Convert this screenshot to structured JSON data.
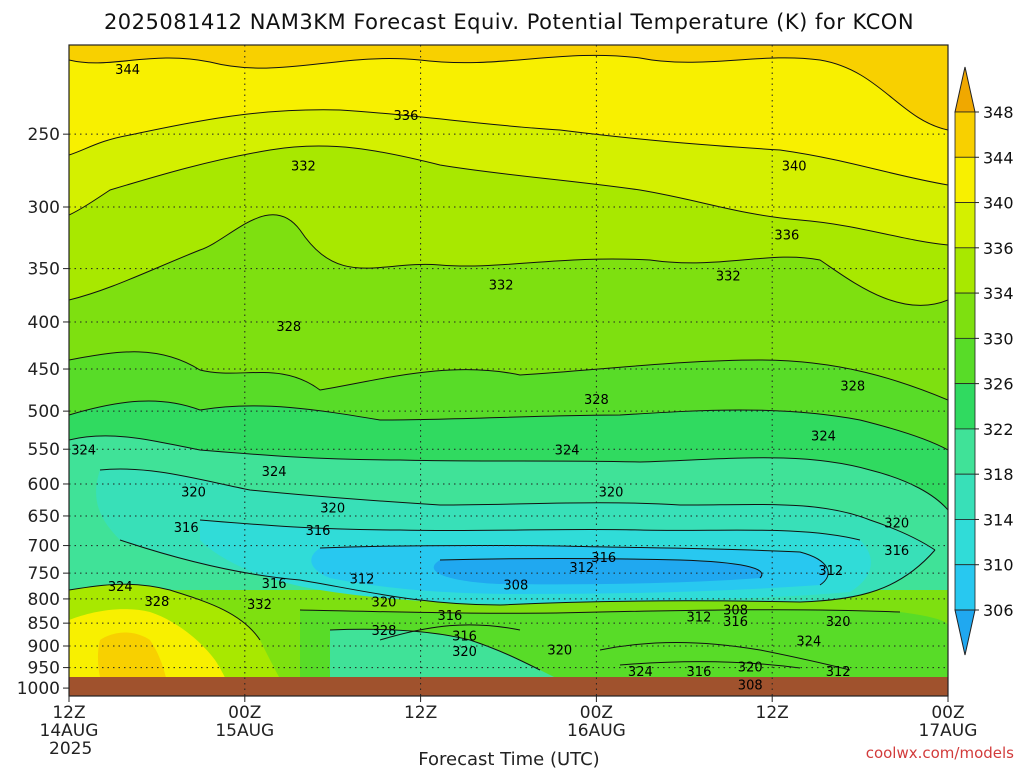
{
  "title": "2025081412 NAM3KM Forecast Equiv. Potential Temperature (K) for KCON",
  "x_axis_label": "Forecast Time (UTC)",
  "credit": "coolwx.com/models",
  "chart_data": {
    "type": "heatmap",
    "title": "2025081412 NAM3KM Forecast Equiv. Potential Temperature (K) for KCON",
    "xlabel": "Forecast Time (UTC)",
    "ylabel": "",
    "x_ticks": [
      {
        "hour": 0,
        "lines": [
          "12Z",
          "14AUG",
          "2025"
        ]
      },
      {
        "hour": 12,
        "lines": [
          "00Z",
          "15AUG"
        ]
      },
      {
        "hour": 24,
        "lines": [
          "12Z"
        ]
      },
      {
        "hour": 36,
        "lines": [
          "00Z",
          "16AUG"
        ]
      },
      {
        "hour": 48,
        "lines": [
          "12Z"
        ]
      },
      {
        "hour": 60,
        "lines": [
          "00Z",
          "17AUG"
        ]
      }
    ],
    "xlim_hours": [
      0,
      60
    ],
    "y_ticks_hPa": [
      250,
      300,
      350,
      400,
      450,
      500,
      550,
      600,
      650,
      700,
      750,
      800,
      850,
      900,
      950,
      1000
    ],
    "ylim_hPa": [
      200,
      1020
    ],
    "y_scale": "log",
    "grid": true,
    "colorbar": {
      "ticks": [
        306,
        310,
        314,
        318,
        322,
        326,
        330,
        334,
        336,
        340,
        344,
        348
      ],
      "colors": [
        "#20a8f0",
        "#28c8f0",
        "#30dcd8",
        "#38e0b8",
        "#40e298",
        "#30da60",
        "#58dc28",
        "#7ee010",
        "#a8e800",
        "#d4f000",
        "#f8f000",
        "#f8d000",
        "#f0a800"
      ]
    },
    "contour_labels": [
      {
        "value": "344",
        "hour": 4.0,
        "hPa": 213
      },
      {
        "value": "336",
        "hour": 23.0,
        "hPa": 239
      },
      {
        "value": "340",
        "hour": 49.5,
        "hPa": 271
      },
      {
        "value": "332",
        "hour": 16.0,
        "hPa": 271
      },
      {
        "value": "336",
        "hour": 49.0,
        "hPa": 322
      },
      {
        "value": "332",
        "hour": 29.5,
        "hPa": 365
      },
      {
        "value": "332",
        "hour": 45.0,
        "hPa": 357
      },
      {
        "value": "328",
        "hour": 15.0,
        "hPa": 405
      },
      {
        "value": "328",
        "hour": 36.0,
        "hPa": 486
      },
      {
        "value": "328",
        "hour": 53.5,
        "hPa": 470
      },
      {
        "value": "324",
        "hour": 51.5,
        "hPa": 533
      },
      {
        "value": "324",
        "hour": 1.0,
        "hPa": 552
      },
      {
        "value": "324",
        "hour": 34.0,
        "hPa": 552
      },
      {
        "value": "324",
        "hour": 14.0,
        "hPa": 582
      },
      {
        "value": "320",
        "hour": 8.5,
        "hPa": 613
      },
      {
        "value": "320",
        "hour": 37.0,
        "hPa": 613
      },
      {
        "value": "320",
        "hour": 18.0,
        "hPa": 638
      },
      {
        "value": "320",
        "hour": 56.5,
        "hPa": 662
      },
      {
        "value": "316",
        "hour": 8.0,
        "hPa": 670
      },
      {
        "value": "316",
        "hour": 17.0,
        "hPa": 675
      },
      {
        "value": "316",
        "hour": 36.5,
        "hPa": 722
      },
      {
        "value": "316",
        "hour": 56.5,
        "hPa": 710
      },
      {
        "value": "312",
        "hour": 35.0,
        "hPa": 740
      },
      {
        "value": "312",
        "hour": 52.0,
        "hPa": 746
      },
      {
        "value": "312",
        "hour": 20.0,
        "hPa": 762
      },
      {
        "value": "316",
        "hour": 14.0,
        "hPa": 771
      },
      {
        "value": "324",
        "hour": 3.5,
        "hPa": 776
      },
      {
        "value": "308",
        "hour": 30.5,
        "hPa": 774
      },
      {
        "value": "328",
        "hour": 6.0,
        "hPa": 806
      },
      {
        "value": "332",
        "hour": 13.0,
        "hPa": 812
      },
      {
        "value": "320",
        "hour": 21.5,
        "hPa": 807
      },
      {
        "value": "308",
        "hour": 45.5,
        "hPa": 823
      },
      {
        "value": "316",
        "hour": 26.0,
        "hPa": 835
      },
      {
        "value": "312",
        "hour": 43.0,
        "hPa": 838
      },
      {
        "value": "316",
        "hour": 45.5,
        "hPa": 848
      },
      {
        "value": "320",
        "hour": 52.5,
        "hPa": 848
      },
      {
        "value": "328",
        "hour": 21.5,
        "hPa": 867
      },
      {
        "value": "316",
        "hour": 27.0,
        "hPa": 879
      },
      {
        "value": "324",
        "hour": 50.5,
        "hPa": 890
      },
      {
        "value": "320",
        "hour": 27.0,
        "hPa": 914
      },
      {
        "value": "320",
        "hour": 33.5,
        "hPa": 910
      },
      {
        "value": "324",
        "hour": 39.0,
        "hPa": 960
      },
      {
        "value": "316",
        "hour": 43.0,
        "hPa": 960
      },
      {
        "value": "320",
        "hour": 46.5,
        "hPa": 950
      },
      {
        "value": "312",
        "hour": 52.5,
        "hPa": 960
      },
      {
        "value": "308",
        "hour": 46.5,
        "hPa": 993
      }
    ]
  }
}
